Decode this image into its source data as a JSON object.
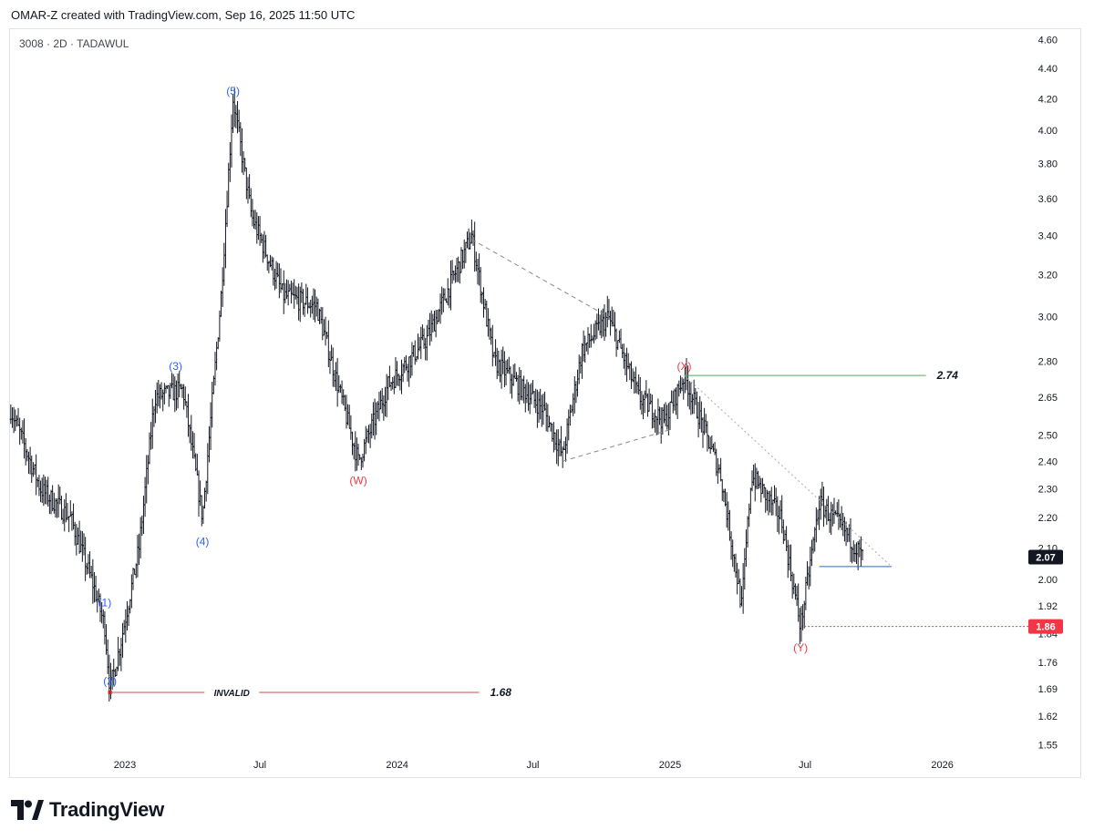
{
  "header": {
    "text": "OMAR-Z created with TradingView.com, Sep 16, 2025 11:50 UTC"
  },
  "symbol_line": "3008 · 2D · TADAWUL",
  "brand": {
    "name": "TradingView"
  },
  "chart_data": {
    "type": "candlestick",
    "symbol": "3008",
    "interval": "2D",
    "exchange": "TADAWUL",
    "y_scale": "log",
    "y_ticks": [
      "4.60",
      "4.40",
      "4.20",
      "4.00",
      "3.80",
      "3.60",
      "3.40",
      "3.20",
      "3.00",
      "2.80",
      "2.65",
      "2.50",
      "2.40",
      "2.30",
      "2.20",
      "2.10",
      "2.00",
      "1.92",
      "1.84",
      "1.76",
      "1.69",
      "1.62",
      "1.55"
    ],
    "x_ticks": [
      "2023",
      "Jul",
      "2024",
      "Jul",
      "2025",
      "Jul",
      "2026"
    ],
    "price_path": [
      {
        "date": "2022-08-01",
        "price": 2.6
      },
      {
        "date": "2022-09-10",
        "price": 2.3
      },
      {
        "date": "2022-10-20",
        "price": 2.2
      },
      {
        "date": "2022-11-20",
        "price": 1.98
      },
      {
        "date": "2022-12-05",
        "price": 1.86
      },
      {
        "date": "2022-12-12",
        "price": 1.69
      },
      {
        "date": "2022-12-25",
        "price": 1.8
      },
      {
        "date": "2023-01-20",
        "price": 2.1
      },
      {
        "date": "2023-02-10",
        "price": 2.65
      },
      {
        "date": "2023-03-20",
        "price": 2.68
      },
      {
        "date": "2023-04-15",
        "price": 2.2
      },
      {
        "date": "2023-05-10",
        "price": 3.1
      },
      {
        "date": "2023-05-26",
        "price": 4.2
      },
      {
        "date": "2023-06-20",
        "price": 3.5
      },
      {
        "date": "2023-08-01",
        "price": 3.1
      },
      {
        "date": "2023-09-15",
        "price": 3.05
      },
      {
        "date": "2023-11-10",
        "price": 2.4
      },
      {
        "date": "2023-12-20",
        "price": 2.7
      },
      {
        "date": "2024-02-10",
        "price": 2.9
      },
      {
        "date": "2024-04-10",
        "price": 3.4
      },
      {
        "date": "2024-05-10",
        "price": 2.8
      },
      {
        "date": "2024-07-15",
        "price": 2.6
      },
      {
        "date": "2024-08-10",
        "price": 2.42
      },
      {
        "date": "2024-09-05",
        "price": 2.85
      },
      {
        "date": "2024-10-10",
        "price": 3.0
      },
      {
        "date": "2024-11-20",
        "price": 2.65
      },
      {
        "date": "2024-12-25",
        "price": 2.55
      },
      {
        "date": "2025-01-20",
        "price": 2.74
      },
      {
        "date": "2025-03-10",
        "price": 2.35
      },
      {
        "date": "2025-04-07",
        "price": 1.92
      },
      {
        "date": "2025-04-20",
        "price": 2.35
      },
      {
        "date": "2025-05-30",
        "price": 2.2
      },
      {
        "date": "2025-06-25",
        "price": 1.86
      },
      {
        "date": "2025-07-20",
        "price": 2.25
      },
      {
        "date": "2025-08-25",
        "price": 2.15
      },
      {
        "date": "2025-09-16",
        "price": 2.07
      }
    ],
    "wave_labels": [
      {
        "text": "(1)",
        "date": "2022-12-05",
        "price": 1.93,
        "color": "#2962ff"
      },
      {
        "text": "(2)",
        "date": "2022-12-12",
        "price": 1.71,
        "color": "#2962ff"
      },
      {
        "text": "(3)",
        "date": "2023-03-10",
        "price": 2.78,
        "color": "#2962ff"
      },
      {
        "text": "(4)",
        "date": "2023-04-15",
        "price": 2.12,
        "color": "#2962ff"
      },
      {
        "text": "(5)",
        "date": "2023-05-26",
        "price": 4.25,
        "color": "#2962ff"
      },
      {
        "text": "(W)",
        "date": "2023-11-10",
        "price": 2.33,
        "color": "#f23645"
      },
      {
        "text": "(X)",
        "date": "2025-01-20",
        "price": 2.78,
        "color": "#f23645"
      },
      {
        "text": "(Y)",
        "date": "2025-06-25",
        "price": 1.8,
        "color": "#f23645"
      }
    ],
    "levels": [
      {
        "label": "INVALID",
        "value_text": "1.68",
        "price": 1.68,
        "from": "2022-12-12",
        "to": "2024-04-20",
        "color": "#c94c4c",
        "style": "solid"
      },
      {
        "label": "",
        "value_text": "2.74",
        "price": 2.74,
        "from": "2025-01-20",
        "to": "2025-12-10",
        "color": "#4caf50",
        "style": "solid"
      },
      {
        "label": "",
        "value_text": "",
        "price": 2.04,
        "from": "2025-07-20",
        "to": "2025-10-25",
        "color": "#2962ff",
        "style": "solid"
      },
      {
        "label": "",
        "value_text": "",
        "price": 1.86,
        "from": "2025-06-25",
        "to": "2026-05-30",
        "color": "#f23645",
        "style": "dotted"
      }
    ],
    "trendlines": [
      {
        "from": {
          "date": "2024-04-10",
          "price": 3.38
        },
        "to": {
          "date": "2024-10-10",
          "price": 3.0
        },
        "color": "#888888",
        "style": "dashed"
      },
      {
        "from": {
          "date": "2024-08-10",
          "price": 2.4
        },
        "to": {
          "date": "2025-01-01",
          "price": 2.52
        },
        "color": "#888888",
        "style": "dashed"
      },
      {
        "from": {
          "date": "2025-01-20",
          "price": 2.74
        },
        "to": {
          "date": "2025-10-25",
          "price": 2.04
        },
        "color": "#aaaaaa",
        "style": "dotted"
      }
    ],
    "price_badges": [
      {
        "text": "2.07",
        "price": 2.07,
        "bg": "#131722",
        "fg": "#ffffff"
      },
      {
        "text": "1.86",
        "price": 1.86,
        "bg": "#f23645",
        "fg": "#ffffff"
      }
    ],
    "colors": {
      "candle": "#131722",
      "grid": "#eeeeee",
      "axis_text": "#131722"
    }
  }
}
